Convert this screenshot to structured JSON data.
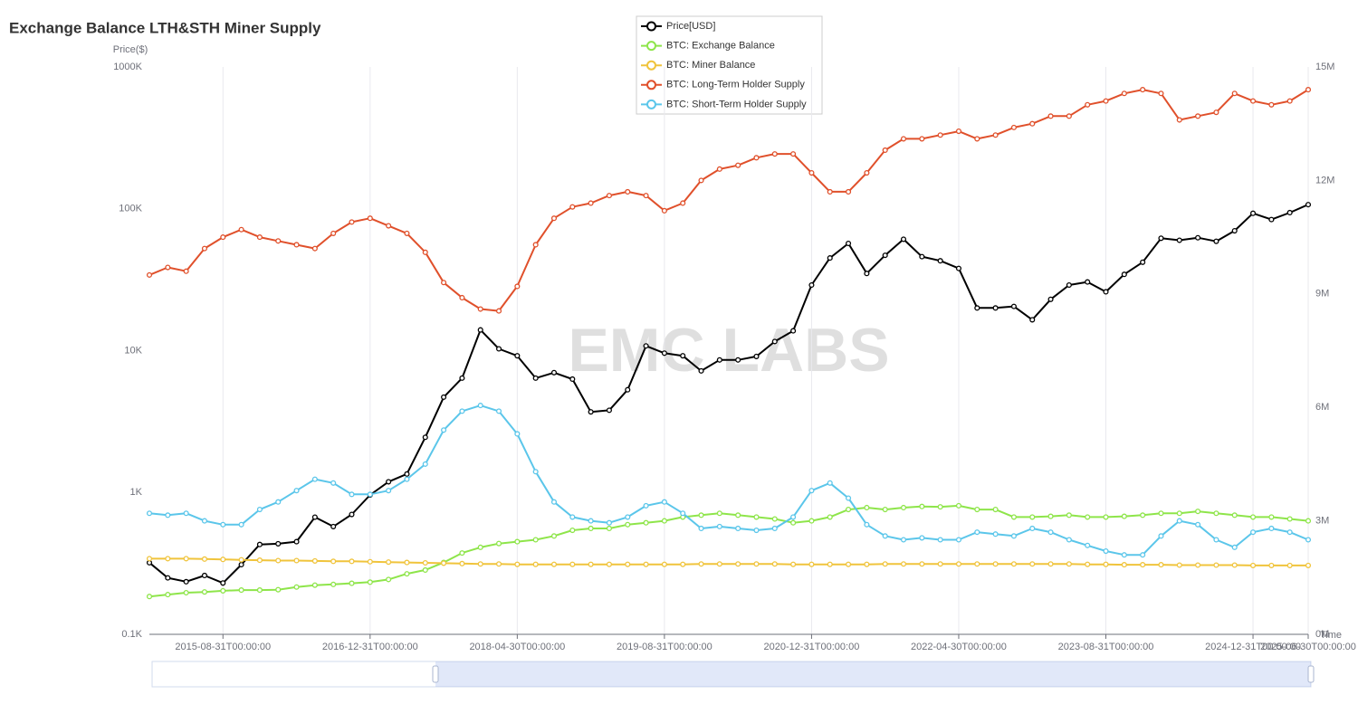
{
  "chart_data": {
    "type": "line",
    "title": "Exchange Balance LTH&STH Miner Supply",
    "y_axis_label": "Price($)",
    "x_axis_label": "Time",
    "watermark": "EMC LABS",
    "legend_position": "top",
    "y_scale": "log",
    "grid": true,
    "categories": [
      null,
      null,
      null,
      null,
      "2015-08-31T00:00:00",
      null,
      null,
      null,
      null,
      null,
      null,
      null,
      "2016-12-31T00:00:00",
      null,
      null,
      null,
      null,
      null,
      null,
      null,
      "2018-04-30T00:00:00",
      null,
      null,
      null,
      null,
      null,
      null,
      null,
      "2019-08-31T00:00:00",
      null,
      null,
      null,
      null,
      null,
      null,
      null,
      "2020-12-31T00:00:00",
      null,
      null,
      null,
      null,
      null,
      null,
      null,
      "2022-04-30T00:00:00",
      null,
      null,
      null,
      null,
      null,
      null,
      null,
      "2023-08-31T00:00:00",
      null,
      null,
      null,
      null,
      null,
      null,
      null,
      "2024-12-31T00:00:00",
      null,
      null,
      "2025-06-30T00:00:00"
    ],
    "ylim": [
      100,
      1000000
    ],
    "yticks": [
      {
        "value": 100,
        "label": "0.1K"
      },
      {
        "value": 1000,
        "label": "1K"
      },
      {
        "value": 10000,
        "label": "10K"
      },
      {
        "value": 100000,
        "label": "100K"
      },
      {
        "value": 1000000,
        "label": "1000K"
      }
    ],
    "y2lim": [
      0,
      15000000
    ],
    "y2ticks": [
      {
        "value": 0,
        "label": "0M"
      },
      {
        "value": 3000000,
        "label": "3M"
      },
      {
        "value": 6000000,
        "label": "6M"
      },
      {
        "value": 9000000,
        "label": "9M"
      },
      {
        "value": 12000000,
        "label": "12M"
      },
      {
        "value": 15000000,
        "label": "15M"
      }
    ],
    "series": [
      {
        "name": "Price[USD]",
        "color": "#000000",
        "axis": "y",
        "values": [
          320,
          250,
          235,
          260,
          230,
          310,
          430,
          435,
          450,
          670,
          575,
          700,
          960,
          1190,
          1350,
          2450,
          4700,
          6400,
          14000,
          10300,
          9200,
          6400,
          7000,
          6300,
          3700,
          3800,
          5300,
          10800,
          9600,
          9200,
          7200,
          8600,
          8600,
          9100,
          11600,
          13800,
          29000,
          45000,
          57000,
          35000,
          47000,
          61000,
          46000,
          43000,
          38000,
          20000,
          20000,
          20500,
          16500,
          23000,
          29000,
          30500,
          26000,
          34500,
          42000,
          62000,
          60000,
          62500,
          59000,
          70000,
          93000,
          84000,
          94000,
          107000
        ]
      },
      {
        "name": "BTC: Exchange Balance",
        "color": "#8ee54a",
        "axis": "y2",
        "values": [
          1000000,
          1050000,
          1100000,
          1120000,
          1150000,
          1170000,
          1170000,
          1180000,
          1250000,
          1300000,
          1320000,
          1350000,
          1380000,
          1450000,
          1600000,
          1700000,
          1900000,
          2150000,
          2300000,
          2400000,
          2450000,
          2500000,
          2600000,
          2750000,
          2800000,
          2800000,
          2900000,
          2950000,
          3000000,
          3100000,
          3150000,
          3200000,
          3150000,
          3100000,
          3050000,
          2950000,
          3000000,
          3100000,
          3300000,
          3350000,
          3300000,
          3350000,
          3380000,
          3370000,
          3400000,
          3300000,
          3300000,
          3100000,
          3100000,
          3120000,
          3150000,
          3100000,
          3100000,
          3120000,
          3150000,
          3200000,
          3200000,
          3250000,
          3200000,
          3150000,
          3100000,
          3100000,
          3050000,
          3000000
        ]
      },
      {
        "name": "BTC: Miner Balance",
        "color": "#f0c43c",
        "axis": "y2",
        "values": [
          2000000,
          2000000,
          2000000,
          1990000,
          1980000,
          1970000,
          1960000,
          1950000,
          1950000,
          1940000,
          1930000,
          1930000,
          1920000,
          1910000,
          1900000,
          1890000,
          1880000,
          1870000,
          1860000,
          1860000,
          1850000,
          1850000,
          1850000,
          1850000,
          1850000,
          1850000,
          1850000,
          1850000,
          1850000,
          1850000,
          1860000,
          1860000,
          1860000,
          1860000,
          1860000,
          1850000,
          1850000,
          1850000,
          1850000,
          1850000,
          1860000,
          1860000,
          1860000,
          1860000,
          1860000,
          1860000,
          1860000,
          1860000,
          1860000,
          1860000,
          1860000,
          1850000,
          1850000,
          1840000,
          1840000,
          1840000,
          1830000,
          1830000,
          1830000,
          1830000,
          1820000,
          1820000,
          1820000,
          1820000
        ]
      },
      {
        "name": "BTC: Long-Term Holder Supply",
        "color": "#e0502b",
        "axis": "y2",
        "values": [
          9500000,
          9700000,
          9600000,
          10200000,
          10500000,
          10700000,
          10500000,
          10400000,
          10300000,
          10200000,
          10600000,
          10900000,
          11000000,
          10800000,
          10600000,
          10100000,
          9300000,
          8900000,
          8600000,
          8550000,
          9200000,
          10300000,
          11000000,
          11300000,
          11400000,
          11600000,
          11700000,
          11600000,
          11200000,
          11400000,
          12000000,
          12300000,
          12400000,
          12600000,
          12700000,
          12700000,
          12200000,
          11700000,
          11700000,
          12200000,
          12800000,
          13100000,
          13100000,
          13200000,
          13300000,
          13100000,
          13200000,
          13400000,
          13500000,
          13700000,
          13700000,
          14000000,
          14100000,
          14300000,
          14400000,
          14300000,
          13600000,
          13700000,
          13800000,
          14300000,
          14100000,
          14000000,
          14100000,
          14400000
        ]
      },
      {
        "name": "BTC: Short-Term Holder Supply",
        "color": "#5bc6ea",
        "axis": "y2",
        "values": [
          3200000,
          3150000,
          3200000,
          3000000,
          2900000,
          2900000,
          3300000,
          3500000,
          3800000,
          4100000,
          4000000,
          3700000,
          3700000,
          3800000,
          4100000,
          4500000,
          5400000,
          5900000,
          6050000,
          5900000,
          5300000,
          4300000,
          3500000,
          3100000,
          3000000,
          2950000,
          3100000,
          3400000,
          3500000,
          3200000,
          2800000,
          2850000,
          2800000,
          2750000,
          2800000,
          3100000,
          3800000,
          4000000,
          3600000,
          2900000,
          2600000,
          2500000,
          2550000,
          2500000,
          2500000,
          2700000,
          2650000,
          2600000,
          2800000,
          2700000,
          2500000,
          2350000,
          2200000,
          2100000,
          2100000,
          2600000,
          3000000,
          2900000,
          2500000,
          2300000,
          2700000,
          2800000,
          2700000,
          2500000
        ]
      }
    ]
  }
}
